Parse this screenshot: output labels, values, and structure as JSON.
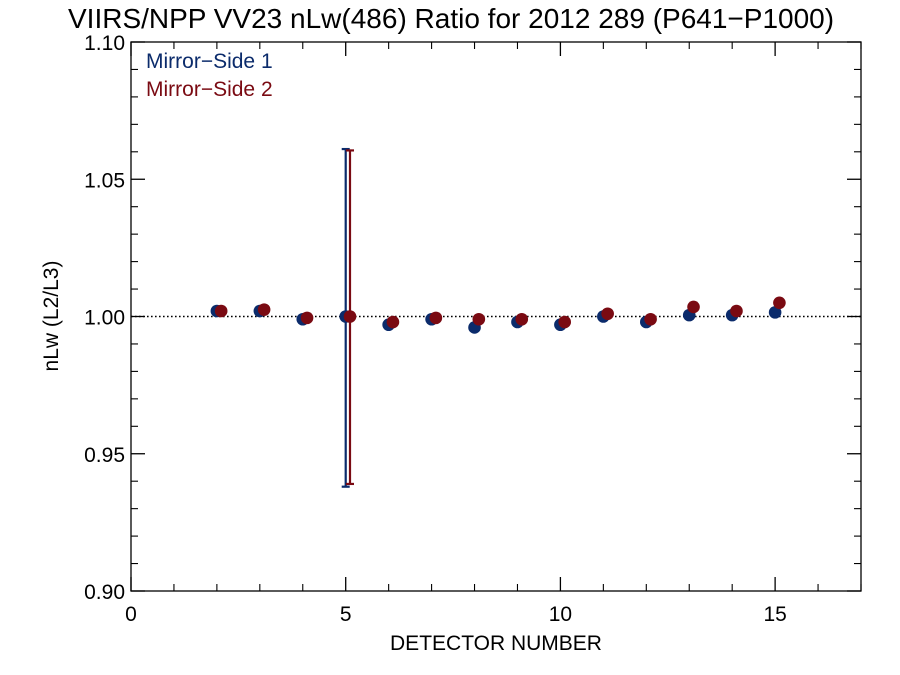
{
  "colors": {
    "mirror_side_1": "#0b2b6b",
    "mirror_side_2": "#7a0a12",
    "axis": "#000000"
  },
  "chart_data": {
    "type": "scatter",
    "title": "VIIRS/NPP VV23 nLw(486) Ratio for 2012 289 (P641−P1000)",
    "xlabel": "DETECTOR NUMBER",
    "ylabel": "nLw (L2/L3)",
    "xlim": [
      0,
      17
    ],
    "ylim": [
      0.9,
      1.1
    ],
    "x_ticks": [
      0,
      5,
      10,
      15
    ],
    "x_tick_labels": [
      "0",
      "5",
      "10",
      "15"
    ],
    "x_minor_ticks": [
      1,
      2,
      3,
      4,
      6,
      7,
      8,
      9,
      11,
      12,
      13,
      14,
      16,
      17
    ],
    "y_ticks": [
      0.9,
      0.95,
      1.0,
      1.05,
      1.1
    ],
    "y_tick_labels": [
      "0.90",
      "0.95",
      "1.00",
      "1.05",
      "1.10"
    ],
    "y_minor_step": 0.01,
    "reference_line": {
      "y": 1.0,
      "style": "dotted"
    },
    "legend_position": "top-left",
    "series": [
      {
        "name": "Mirror−Side 1",
        "x": [
          2,
          3,
          4,
          5,
          6,
          7,
          8,
          9,
          10,
          11,
          12,
          13,
          14,
          15
        ],
        "y": [
          1.002,
          1.002,
          0.999,
          1.0,
          0.997,
          0.999,
          0.996,
          0.998,
          0.997,
          1.0,
          0.998,
          1.0005,
          1.0005,
          1.0015
        ],
        "error_bars": [
          {
            "x": 5,
            "low": 0.938,
            "high": 1.061
          }
        ]
      },
      {
        "name": "Mirror−Side 2",
        "x": [
          2.1,
          3.1,
          4.1,
          5.1,
          6.1,
          7.1,
          8.1,
          9.1,
          10.1,
          11.1,
          12.1,
          13.1,
          14.1,
          15.1
        ],
        "y": [
          1.002,
          1.0025,
          0.9995,
          1.0,
          0.998,
          0.9995,
          0.999,
          0.999,
          0.998,
          1.001,
          0.999,
          1.0035,
          1.002,
          1.005
        ],
        "error_bars": [
          {
            "x": 5.1,
            "low": 0.939,
            "high": 1.0605
          }
        ]
      }
    ]
  }
}
